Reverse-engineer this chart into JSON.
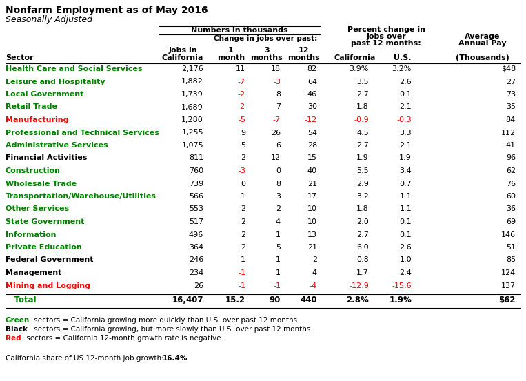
{
  "title1": "Nonfarm Employment as of May 2016",
  "title2": "Seasonally Adjusted",
  "sectors": [
    "Health Care and Social Services",
    "Leisure and Hospitality",
    "Local Government",
    "Retail Trade",
    "Manufacturing",
    "Professional and Technical Services",
    "Administrative Services",
    "Financial Activities",
    "Construction",
    "Wholesale Trade",
    "Transportation/Warehouse/Utilities",
    "Other Services",
    "State Government",
    "Information",
    "Private Education",
    "Federal Government",
    "Management",
    "Mining and Logging"
  ],
  "sector_colors": [
    "#008000",
    "#008000",
    "#008000",
    "#008000",
    "#FF0000",
    "#008000",
    "#008000",
    "#000000",
    "#008000",
    "#008000",
    "#008000",
    "#008000",
    "#008000",
    "#008000",
    "#008000",
    "#000000",
    "#000000",
    "#FF0000"
  ],
  "jobs_ca": [
    "2,176",
    "1,882",
    "1,739",
    "1,689",
    "1,280",
    "1,255",
    "1,075",
    "811",
    "760",
    "739",
    "566",
    "553",
    "517",
    "496",
    "364",
    "246",
    "234",
    "26"
  ],
  "change_1m": [
    "11",
    "-7",
    "-2",
    "-2",
    "-5",
    "9",
    "5",
    "2",
    "-3",
    "0",
    "1",
    "2",
    "2",
    "2",
    "2",
    "1",
    "-1",
    "-1"
  ],
  "change_3m": [
    "18",
    "-3",
    "8",
    "7",
    "-7",
    "26",
    "6",
    "12",
    "0",
    "8",
    "3",
    "2",
    "4",
    "1",
    "5",
    "1",
    "1",
    "-1"
  ],
  "change_12m": [
    "82",
    "64",
    "46",
    "30",
    "-12",
    "54",
    "28",
    "15",
    "40",
    "21",
    "17",
    "10",
    "10",
    "13",
    "21",
    "2",
    "4",
    "-4"
  ],
  "pct_ca": [
    "3.9%",
    "3.5",
    "2.7",
    "1.8",
    "-0.9",
    "4.5",
    "2.7",
    "1.9",
    "5.5",
    "2.9",
    "3.2",
    "1.8",
    "2.0",
    "2.7",
    "6.0",
    "0.8",
    "1.7",
    "-12.9"
  ],
  "pct_us": [
    "3.2%",
    "2.6",
    "0.1",
    "2.1",
    "-0.3",
    "3.3",
    "2.1",
    "1.9",
    "3.4",
    "0.7",
    "1.1",
    "1.1",
    "0.1",
    "0.1",
    "2.6",
    "1.0",
    "2.4",
    "-15.6"
  ],
  "avg_pay": [
    "$48",
    "27",
    "73",
    "35",
    "84",
    "112",
    "41",
    "96",
    "62",
    "76",
    "60",
    "36",
    "69",
    "146",
    "51",
    "85",
    "124",
    "137"
  ],
  "change_1m_colors": [
    "#000000",
    "#FF0000",
    "#FF0000",
    "#FF0000",
    "#FF0000",
    "#000000",
    "#000000",
    "#000000",
    "#FF0000",
    "#000000",
    "#000000",
    "#000000",
    "#000000",
    "#000000",
    "#000000",
    "#000000",
    "#FF0000",
    "#FF0000"
  ],
  "change_3m_colors": [
    "#000000",
    "#FF0000",
    "#000000",
    "#000000",
    "#FF0000",
    "#000000",
    "#000000",
    "#000000",
    "#000000",
    "#000000",
    "#000000",
    "#000000",
    "#000000",
    "#000000",
    "#000000",
    "#000000",
    "#000000",
    "#FF0000"
  ],
  "change_12m_colors": [
    "#000000",
    "#000000",
    "#000000",
    "#000000",
    "#FF0000",
    "#000000",
    "#000000",
    "#000000",
    "#000000",
    "#000000",
    "#000000",
    "#000000",
    "#000000",
    "#000000",
    "#000000",
    "#000000",
    "#000000",
    "#FF0000"
  ],
  "pct_ca_colors": [
    "#000000",
    "#000000",
    "#000000",
    "#000000",
    "#FF0000",
    "#000000",
    "#000000",
    "#000000",
    "#000000",
    "#000000",
    "#000000",
    "#000000",
    "#000000",
    "#000000",
    "#000000",
    "#000000",
    "#000000",
    "#FF0000"
  ],
  "pct_us_colors": [
    "#000000",
    "#000000",
    "#000000",
    "#000000",
    "#FF0000",
    "#000000",
    "#000000",
    "#000000",
    "#000000",
    "#000000",
    "#000000",
    "#000000",
    "#000000",
    "#000000",
    "#000000",
    "#000000",
    "#000000",
    "#FF0000"
  ],
  "total_row": {
    "label": "Total",
    "jobs_ca": "16,407",
    "change_1m": "15.2",
    "change_3m": "90",
    "change_12m": "440",
    "pct_ca": "2.8%",
    "pct_us": "1.9%",
    "avg_pay": "$62"
  },
  "footer_share_label": "California share of US 12-month job growth:",
  "footer_share_value": "16.4%",
  "bg_color": "#FFFFFF",
  "fs_title": 10,
  "fs_subtitle": 9,
  "fs_header": 8,
  "fs_data": 8,
  "fs_total": 8.5,
  "fs_footer": 7.5
}
